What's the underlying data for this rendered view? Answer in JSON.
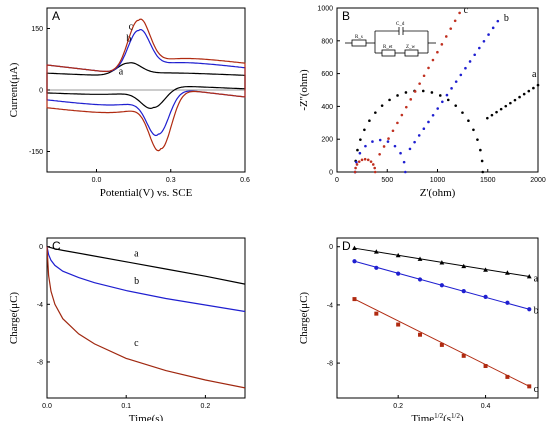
{
  "chart_data": [
    {
      "panel": "A",
      "type": "line",
      "xlabel": "Potential(V) vs. SCE",
      "ylabel": "Current(μA)",
      "xlim": [
        -0.2,
        0.6
      ],
      "ylim": [
        -200,
        200
      ],
      "xticks": [
        0.0,
        0.3,
        0.6
      ],
      "xtick_labels": [
        "0.0",
        "0.3",
        "0.6"
      ],
      "yticks": [
        150,
        0,
        -150
      ],
      "ytick_labels": [
        "150",
        "0",
        "-150"
      ],
      "series": [
        {
          "name": "a",
          "color": "#000000",
          "label_at": [
            0.09,
            38
          ],
          "cv": {
            "base": 22,
            "slope": -25,
            "sep": 18,
            "ip_ox": 33,
            "ep_ox": 0.13,
            "ip_red": 55,
            "ep_red": 0.23,
            "w": 0.065
          }
        },
        {
          "name": "b",
          "color": "#1f1fd0",
          "label_at": [
            0.12,
            118
          ],
          "cv": {
            "base": 22,
            "slope": -70,
            "sep": 22,
            "ip_ox": 110,
            "ep_ox": 0.17,
            "ip_red": 115,
            "ep_red": 0.25,
            "w": 0.06
          }
        },
        {
          "name": "c",
          "color": "#b02a10",
          "label_at": [
            0.13,
            148
          ],
          "cv": {
            "base": 22,
            "slope": -70,
            "sep": 22,
            "ip_ox": 135,
            "ep_ox": 0.17,
            "ip_red": 150,
            "ep_red": 0.26,
            "w": 0.06
          }
        }
      ]
    },
    {
      "panel": "B",
      "type": "scatter",
      "xlabel": "Z'(ohm)",
      "ylabel": "-Z''(ohm)",
      "xlim": [
        0,
        2000
      ],
      "ylim": [
        0,
        1000
      ],
      "xticks": [
        0,
        500,
        1000,
        1500,
        2000
      ],
      "xtick_labels": [
        "0",
        "500",
        "1000",
        "1500",
        "2000"
      ],
      "yticks": [
        0,
        200,
        400,
        600,
        800,
        1000
      ],
      "ytick_labels": [
        "0",
        "200",
        "400",
        "600",
        "800",
        "1000"
      ],
      "circuit_labels": [
        "R_s",
        "C_d",
        "R_et",
        "Z_w"
      ],
      "series": [
        {
          "name": "a",
          "color": "#000000",
          "label_at": [
            1940,
            580
          ],
          "eis": {
            "r0": 180,
            "rct": 1270,
            "tail_start": 1450,
            "tail_end": 2000,
            "tail_y0": 310,
            "tail_y1": 530
          }
        },
        {
          "name": "b",
          "color": "#1f1fd0",
          "label_at": [
            1660,
            920
          ],
          "eis": {
            "r0": 180,
            "rct": 500,
            "tail_start": 680,
            "tail_end": 1600,
            "tail_y0": 100,
            "tail_y1": 920
          }
        },
        {
          "name": "c",
          "color": "#c03020",
          "label_at": [
            1260,
            970
          ],
          "eis": {
            "r0": 180,
            "rct": 200,
            "tail_start": 380,
            "tail_end": 1220,
            "tail_y0": 60,
            "tail_y1": 970
          }
        }
      ]
    },
    {
      "panel": "C",
      "type": "line",
      "xlabel": "Time(s)",
      "ylabel": "Charge(μC)",
      "xlim": [
        0,
        0.25
      ],
      "ylim": [
        -10.5,
        0.6
      ],
      "xticks": [
        0.0,
        0.1,
        0.2
      ],
      "xtick_labels": [
        "0.0",
        "0.1",
        "0.2"
      ],
      "yticks": [
        0,
        -4,
        -8
      ],
      "ytick_labels": [
        "0",
        "-4",
        "-8"
      ],
      "series": [
        {
          "name": "a",
          "color": "#000000",
          "label_at": [
            0.11,
            -0.7
          ],
          "x": [
            0,
            0.01,
            0.02,
            0.05,
            0.1,
            0.15,
            0.2,
            0.25
          ],
          "y": [
            0,
            -0.15,
            -0.26,
            -0.55,
            -1.05,
            -1.55,
            -2.05,
            -2.6
          ]
        },
        {
          "name": "b",
          "color": "#1f1fd0",
          "label_at": [
            0.11,
            -2.6
          ],
          "x": [
            0,
            0.002,
            0.005,
            0.01,
            0.02,
            0.04,
            0.06,
            0.1,
            0.15,
            0.2,
            0.25
          ],
          "y": [
            0,
            -0.55,
            -0.95,
            -1.3,
            -1.7,
            -2.15,
            -2.5,
            -3.05,
            -3.6,
            -4.05,
            -4.5
          ]
        },
        {
          "name": "c",
          "color": "#a02810",
          "label_at": [
            0.11,
            -6.9
          ],
          "x": [
            0,
            0.002,
            0.005,
            0.01,
            0.02,
            0.04,
            0.06,
            0.1,
            0.15,
            0.2,
            0.25
          ],
          "y": [
            0,
            -2.0,
            -3.1,
            -4.0,
            -5.0,
            -6.05,
            -6.75,
            -7.75,
            -8.6,
            -9.25,
            -9.8
          ]
        }
      ]
    },
    {
      "panel": "D",
      "type": "scatter",
      "xlabel": "Time^1/2(s^1/2)",
      "ylabel": "Charge(μC)",
      "xlim": [
        0.06,
        0.52
      ],
      "ylim": [
        -10.4,
        0.6
      ],
      "xticks": [
        0.2,
        0.4
      ],
      "xtick_labels": [
        "0.2",
        "0.4"
      ],
      "yticks": [
        0,
        -4,
        -8
      ],
      "ytick_labels": [
        "0",
        "-4",
        "-8"
      ],
      "series": [
        {
          "name": "a",
          "color": "#000000",
          "marker": "triangle",
          "label_at": [
            0.51,
            -2.4
          ],
          "x": [
            0.1,
            0.15,
            0.2,
            0.25,
            0.3,
            0.35,
            0.4,
            0.45,
            0.5
          ],
          "y": [
            -0.1,
            -0.35,
            -0.6,
            -0.85,
            -1.1,
            -1.35,
            -1.6,
            -1.8,
            -2.05
          ]
        },
        {
          "name": "b",
          "color": "#1f1fd0",
          "marker": "circle",
          "label_at": [
            0.51,
            -4.6
          ],
          "x": [
            0.1,
            0.15,
            0.2,
            0.25,
            0.3,
            0.35,
            0.4,
            0.45,
            0.5
          ],
          "y": [
            -1.0,
            -1.45,
            -1.85,
            -2.25,
            -2.65,
            -3.05,
            -3.45,
            -3.85,
            -4.3
          ]
        },
        {
          "name": "c",
          "color": "#b02a10",
          "marker": "square",
          "label_at": [
            0.51,
            -10.0
          ],
          "x": [
            0.1,
            0.15,
            0.2,
            0.25,
            0.3,
            0.35,
            0.4,
            0.45,
            0.5
          ],
          "y": [
            -3.6,
            -4.6,
            -5.35,
            -6.05,
            -6.75,
            -7.5,
            -8.2,
            -8.95,
            -9.6
          ]
        }
      ]
    }
  ]
}
